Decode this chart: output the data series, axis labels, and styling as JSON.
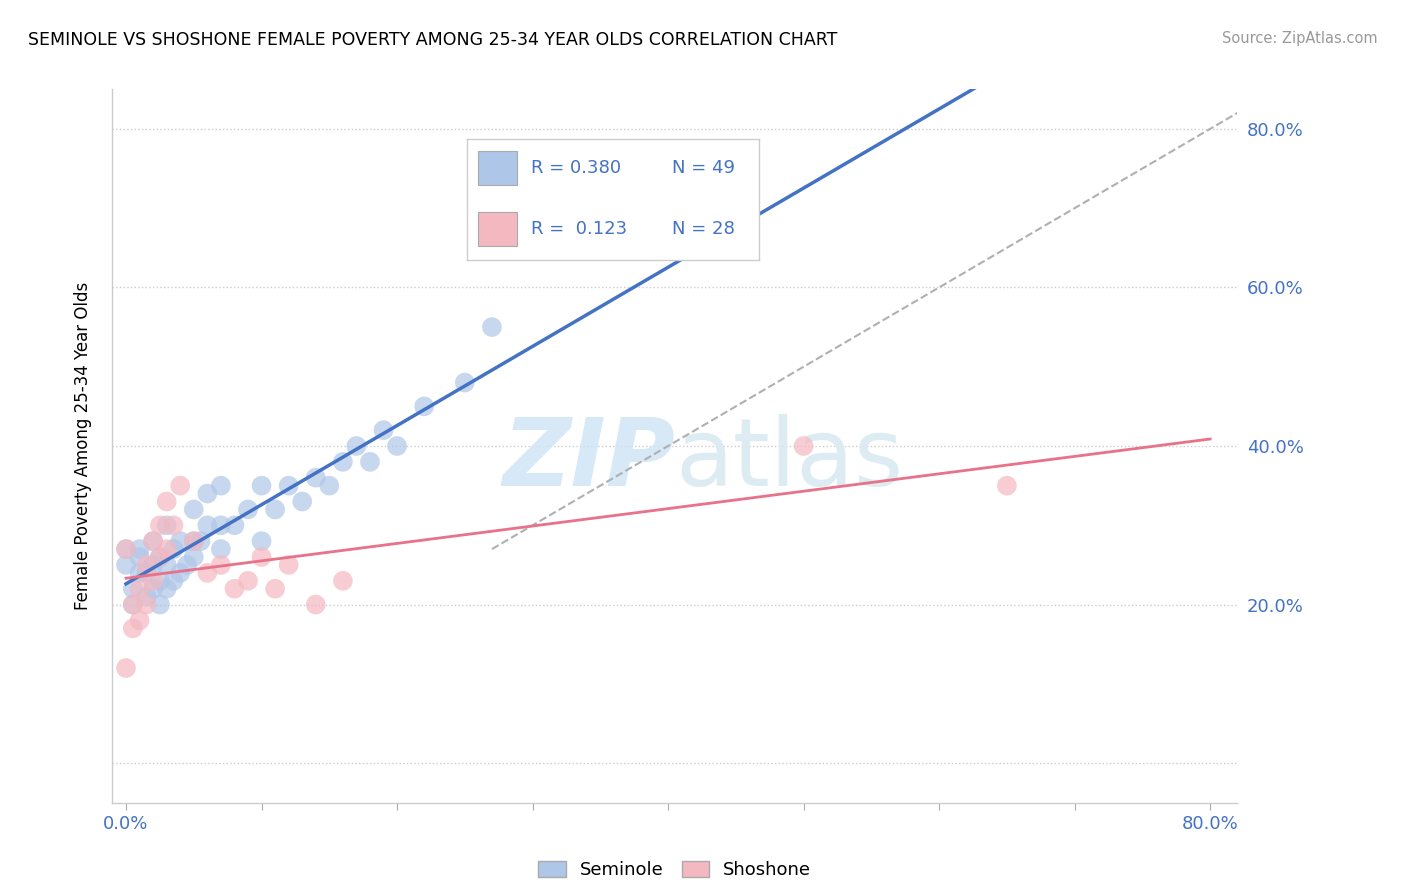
{
  "title": "SEMINOLE VS SHOSHONE FEMALE POVERTY AMONG 25-34 YEAR OLDS CORRELATION CHART",
  "source": "Source: ZipAtlas.com",
  "ylabel": "Female Poverty Among 25-34 Year Olds",
  "xlim": [
    -0.01,
    0.82
  ],
  "ylim": [
    -0.05,
    0.85
  ],
  "watermark_zip": "ZIP",
  "watermark_atlas": "atlas",
  "seminole_color": "#aec6e8",
  "shoshone_color": "#f4b8c1",
  "trendline_seminole_color": "#4472c4",
  "trendline_shoshone_color": "#e8728a",
  "trendline_diagonal_color": "#b0b0b0",
  "label_color": "#4472c4",
  "seminole_x": [
    0.0,
    0.0,
    0.005,
    0.005,
    0.01,
    0.01,
    0.01,
    0.015,
    0.015,
    0.02,
    0.02,
    0.02,
    0.025,
    0.025,
    0.025,
    0.03,
    0.03,
    0.03,
    0.035,
    0.035,
    0.04,
    0.04,
    0.045,
    0.05,
    0.05,
    0.05,
    0.055,
    0.06,
    0.06,
    0.07,
    0.07,
    0.07,
    0.08,
    0.09,
    0.1,
    0.1,
    0.11,
    0.12,
    0.13,
    0.14,
    0.15,
    0.16,
    0.17,
    0.18,
    0.19,
    0.2,
    0.22,
    0.25,
    0.27
  ],
  "seminole_y": [
    0.25,
    0.27,
    0.2,
    0.22,
    0.24,
    0.26,
    0.27,
    0.21,
    0.24,
    0.22,
    0.25,
    0.28,
    0.2,
    0.23,
    0.26,
    0.22,
    0.25,
    0.3,
    0.23,
    0.27,
    0.24,
    0.28,
    0.25,
    0.26,
    0.28,
    0.32,
    0.28,
    0.3,
    0.34,
    0.27,
    0.3,
    0.35,
    0.3,
    0.32,
    0.28,
    0.35,
    0.32,
    0.35,
    0.33,
    0.36,
    0.35,
    0.38,
    0.4,
    0.38,
    0.42,
    0.4,
    0.45,
    0.48,
    0.55
  ],
  "shoshone_x": [
    0.0,
    0.0,
    0.005,
    0.005,
    0.01,
    0.01,
    0.015,
    0.015,
    0.02,
    0.02,
    0.025,
    0.025,
    0.03,
    0.03,
    0.035,
    0.04,
    0.05,
    0.06,
    0.07,
    0.08,
    0.09,
    0.1,
    0.11,
    0.12,
    0.14,
    0.16,
    0.5,
    0.65
  ],
  "shoshone_y": [
    0.27,
    0.12,
    0.2,
    0.17,
    0.22,
    0.18,
    0.25,
    0.2,
    0.28,
    0.23,
    0.3,
    0.26,
    0.33,
    0.27,
    0.3,
    0.35,
    0.28,
    0.24,
    0.25,
    0.22,
    0.23,
    0.26,
    0.22,
    0.25,
    0.2,
    0.23,
    0.4,
    0.35
  ]
}
